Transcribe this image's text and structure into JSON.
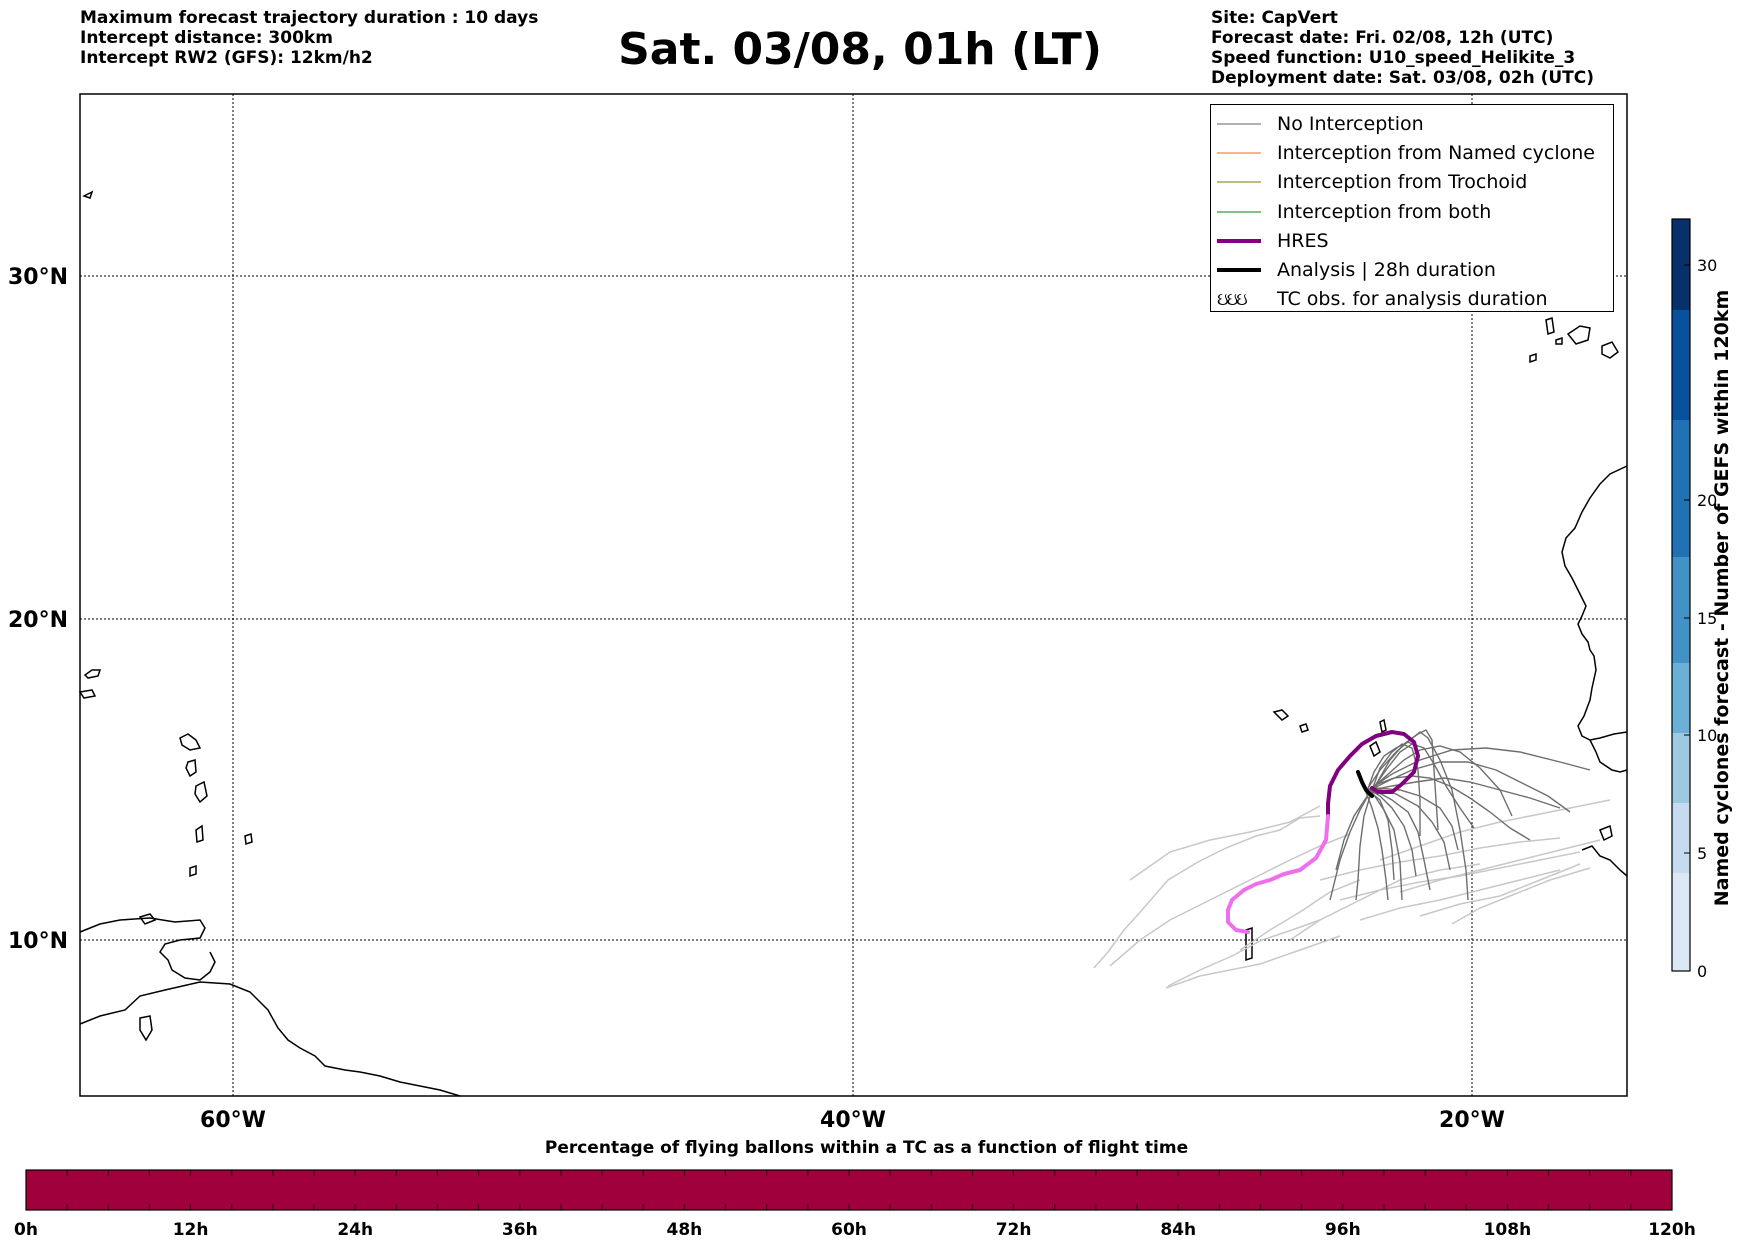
{
  "header_left": [
    "Maximum forecast trajectory duration : 10 days",
    "Intercept distance: 300km",
    "Intercept RW2 (GFS):  12km/h2"
  ],
  "header_right": [
    "Site: CapVert",
    "Forecast date: Fri. 02/08, 12h (UTC)",
    "Speed function: U10_speed_Helikite_3",
    "Deployment date: Sat. 03/08, 02h (UTC)"
  ],
  "title": "Sat. 03/08, 01h (LT)",
  "map": {
    "lat_labels": [
      "30°N",
      "20°N",
      "10°N"
    ],
    "lon_labels": [
      "60°W",
      "40°W",
      "20°W"
    ],
    "grid": true
  },
  "legend": [
    {
      "label": "No Interception",
      "color": "#808080",
      "style": "thin"
    },
    {
      "label": "Interception from Named cyclone",
      "color": "#ff7f50",
      "style": "thin"
    },
    {
      "label": "Interception from Trochoid",
      "color": "#9b8f3a",
      "style": "thin"
    },
    {
      "label": "Interception from both",
      "color": "#3a9b3a",
      "style": "thin"
    },
    {
      "label": "HRES",
      "color": "#800080",
      "style": "thick"
    },
    {
      "label": "Analysis | 28h duration",
      "color": "#000000",
      "style": "thick"
    },
    {
      "label": "TC obs. for analysis duration",
      "symbol": "ઇઇઇ"
    }
  ],
  "bottom_colorbar": {
    "title": "Percentage of flying ballons within a TC as a function of flight time",
    "ticks": [
      "0h",
      "12h",
      "24h",
      "36h",
      "48h",
      "60h",
      "72h",
      "84h",
      "96h",
      "108h",
      "120h"
    ],
    "fill_color": "#a0003c"
  },
  "right_colorbar": {
    "title": "Named cyclones forecast - Number of GEFS within 120km",
    "ticks": [
      "0",
      "5",
      "10",
      "15",
      "20",
      "30"
    ],
    "colors": [
      "#dbe8f5",
      "#c6dbef",
      "#9ecae1",
      "#6baed6",
      "#4292c6",
      "#2171b5",
      "#08519c",
      "#08306b"
    ]
  }
}
